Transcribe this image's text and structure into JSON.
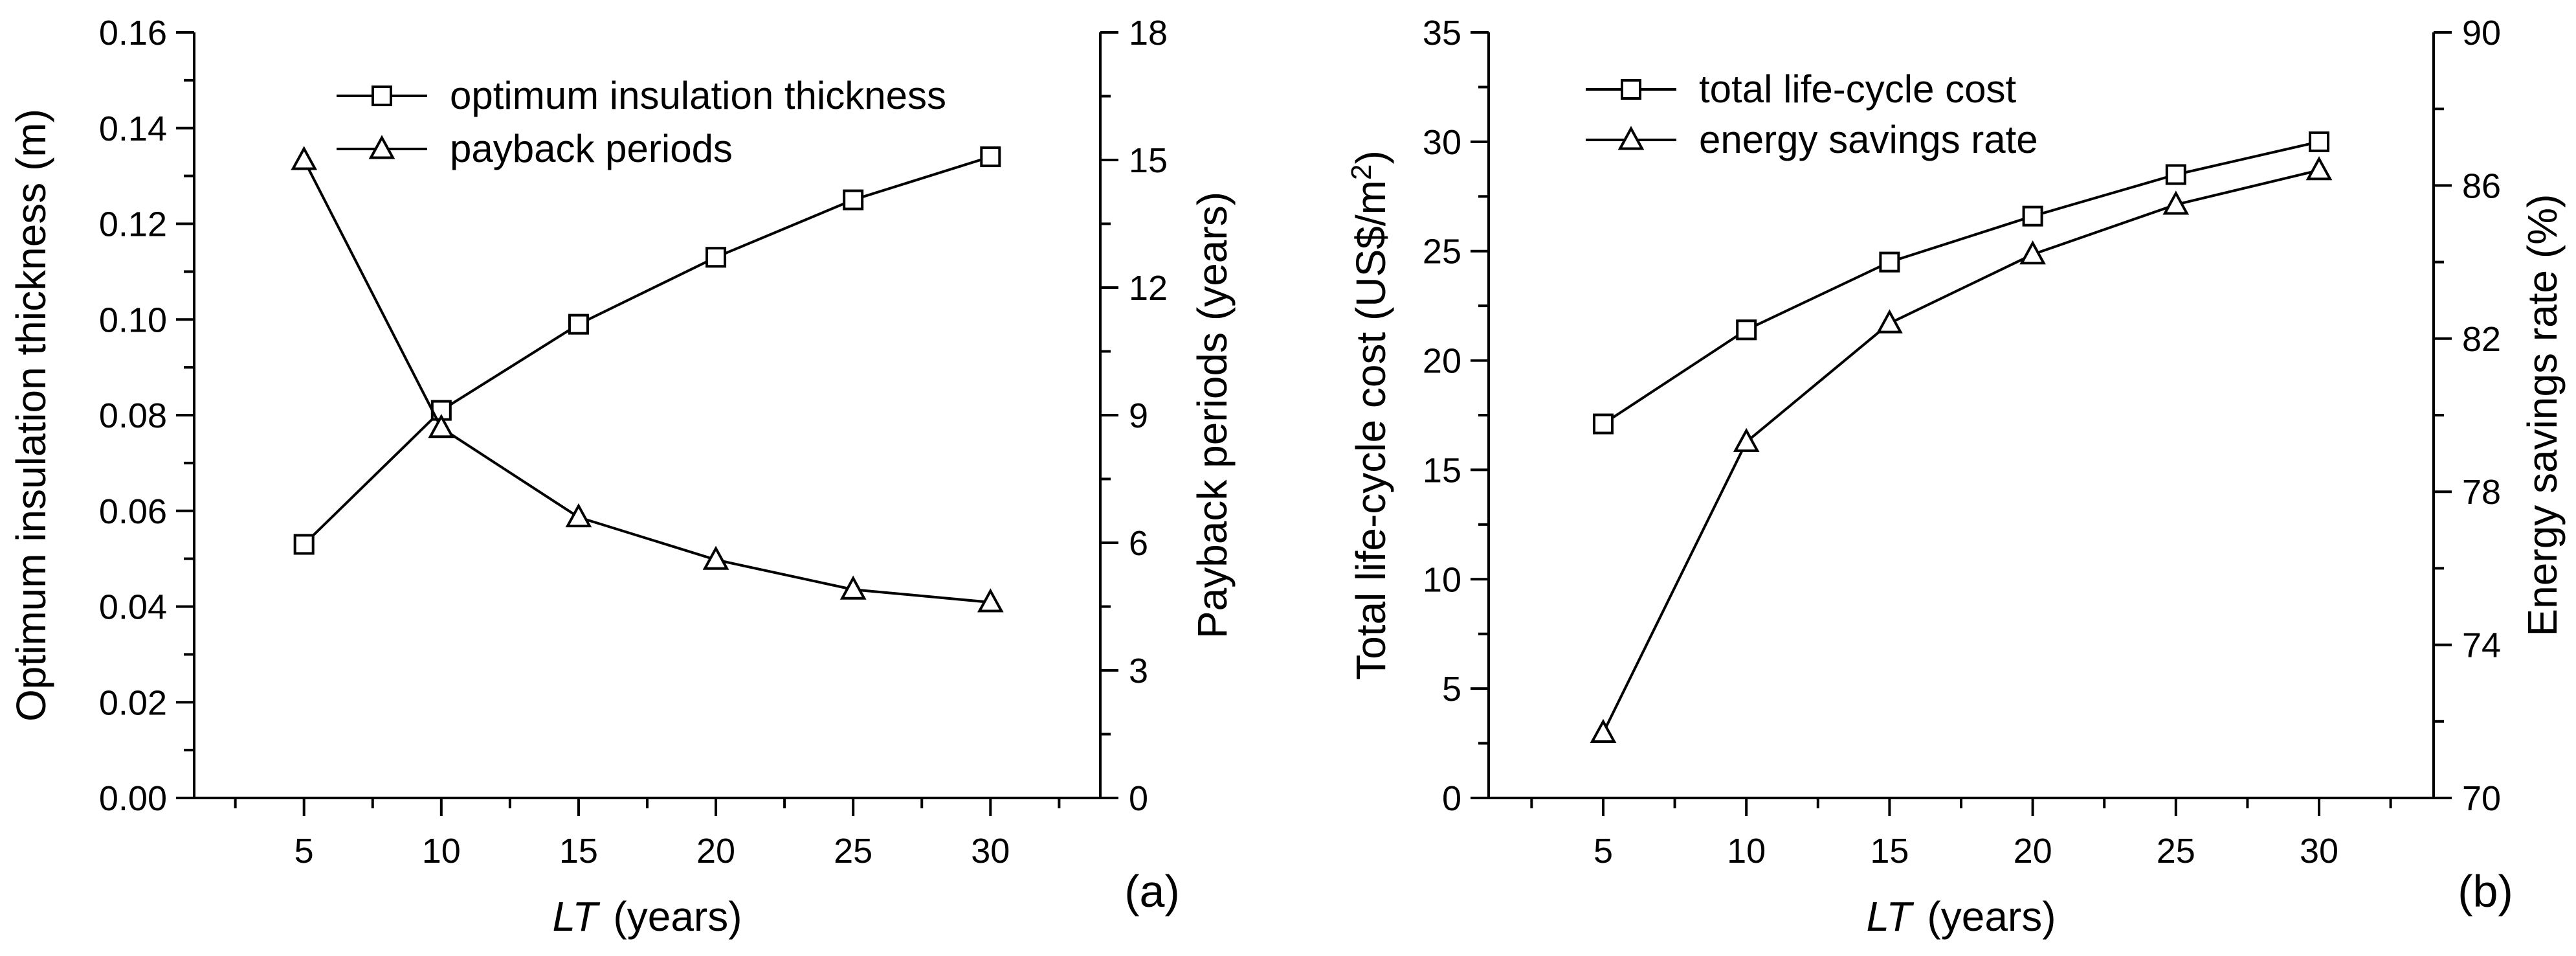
{
  "chart_data": [
    {
      "type": "line",
      "panel_label": "(a)",
      "x": [
        5,
        10,
        15,
        20,
        25,
        30
      ],
      "xlabel_italic": "LT",
      "xlabel_units": "(years)",
      "xlim": [
        1,
        34
      ],
      "xticks": [
        5,
        10,
        15,
        20,
        25,
        30
      ],
      "left_axis": {
        "label": "Optimum insulation thickness (m)",
        "lim": [
          0,
          0.16
        ],
        "ticks": [
          "0.00",
          "0.02",
          "0.04",
          "0.06",
          "0.08",
          "0.10",
          "0.12",
          "0.14",
          "0.16"
        ]
      },
      "right_axis": {
        "label": "Payback periods (years)",
        "lim": [
          0,
          18
        ],
        "ticks": [
          "0",
          "3",
          "6",
          "9",
          "12",
          "15",
          "18"
        ]
      },
      "series": [
        {
          "name": "optimum insulation thickness",
          "marker": "square",
          "axis": "left",
          "values": [
            0.053,
            0.081,
            0.099,
            0.113,
            0.125,
            0.134
          ]
        },
        {
          "name": "payback periods",
          "marker": "triangle",
          "axis": "right",
          "values": [
            15.0,
            8.7,
            6.6,
            5.6,
            4.9,
            4.6
          ]
        }
      ],
      "legend_position": "top-center"
    },
    {
      "type": "line",
      "panel_label": "(b)",
      "x": [
        5,
        10,
        15,
        20,
        25,
        30
      ],
      "xlabel_italic": "LT",
      "xlabel_units": "(years)",
      "xlim": [
        1,
        34
      ],
      "xticks": [
        5,
        10,
        15,
        20,
        25,
        30
      ],
      "left_axis": {
        "label_main": "Total life-cycle cost (US$/m",
        "label_sup": "2",
        "label_end": ")",
        "lim": [
          0,
          35
        ],
        "ticks": [
          "0",
          "5",
          "10",
          "15",
          "20",
          "25",
          "30",
          "35"
        ]
      },
      "right_axis": {
        "label": "Energy savings rate (%)",
        "lim": [
          70,
          90
        ],
        "ticks": [
          "70",
          "74",
          "78",
          "82",
          "86",
          "90"
        ]
      },
      "series": [
        {
          "name": "total life-cycle cost",
          "marker": "square",
          "axis": "left",
          "values": [
            17.1,
            21.4,
            24.5,
            26.6,
            28.5,
            30.0
          ]
        },
        {
          "name": "energy savings rate",
          "marker": "triangle",
          "axis": "right",
          "values": [
            71.7,
            79.3,
            82.4,
            84.2,
            85.5,
            86.4
          ]
        }
      ],
      "legend_position": "top-left"
    }
  ]
}
